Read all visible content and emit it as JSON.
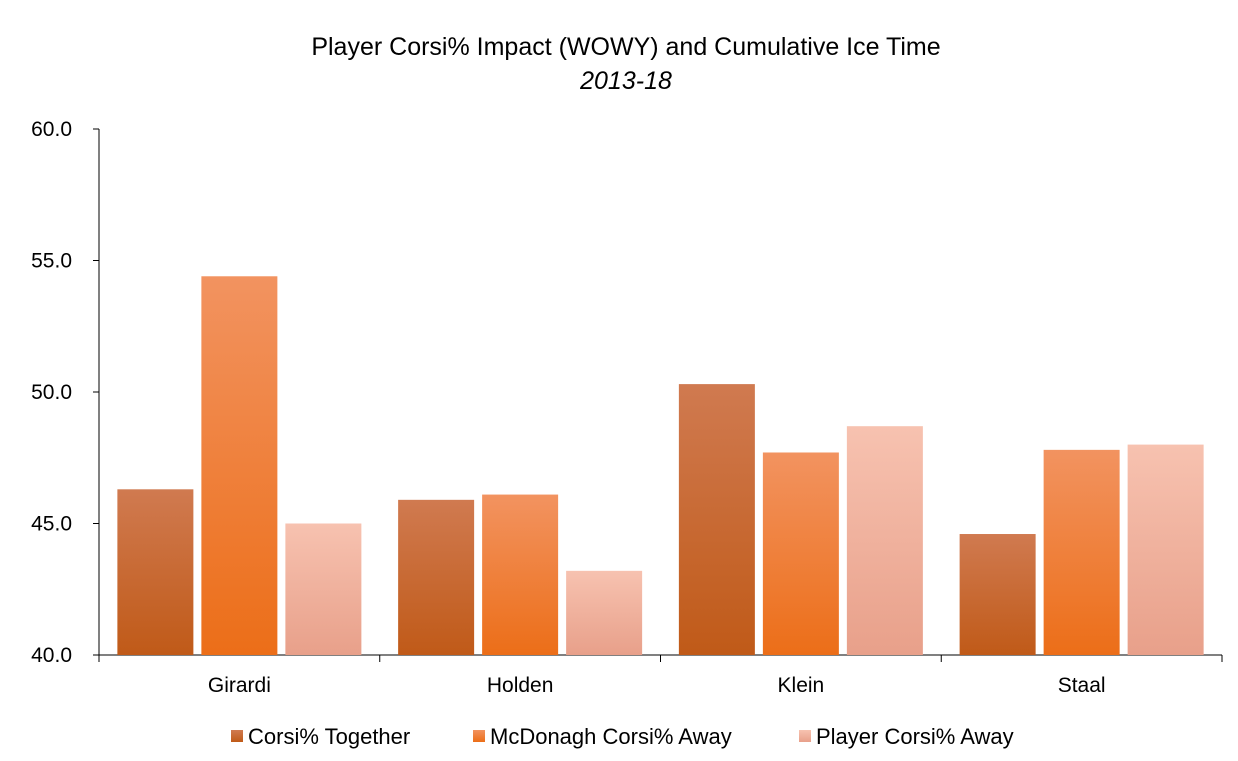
{
  "chart_data": {
    "type": "bar",
    "title": "Player Corsi% Impact (WOWY) and Cumulative Ice Time",
    "subtitle": "2013-18",
    "categories": [
      "Girardi",
      "Holden",
      "Klein",
      "Staal"
    ],
    "series": [
      {
        "name": "Corsi% Together",
        "values": [
          46.3,
          45.9,
          50.3,
          44.6
        ],
        "color_top": "#d07a50",
        "color_bottom": "#c05a18"
      },
      {
        "name": "McDonagh Corsi% Away",
        "values": [
          54.4,
          46.1,
          47.7,
          47.8
        ],
        "color_top": "#f29360",
        "color_bottom": "#ec6e18"
      },
      {
        "name": "Player Corsi% Away",
        "values": [
          45.0,
          43.2,
          48.7,
          48.0
        ],
        "color_top": "#f7c2b0",
        "color_bottom": "#e8a08a"
      }
    ],
    "ylim": [
      40,
      60
    ],
    "yticks": [
      "40.0",
      "45.0",
      "50.0",
      "55.0",
      "60.0"
    ],
    "ytick_values": [
      40,
      45,
      50,
      55,
      60
    ],
    "xlabel": "",
    "ylabel": "",
    "grid": false,
    "legend_position": "bottom"
  }
}
